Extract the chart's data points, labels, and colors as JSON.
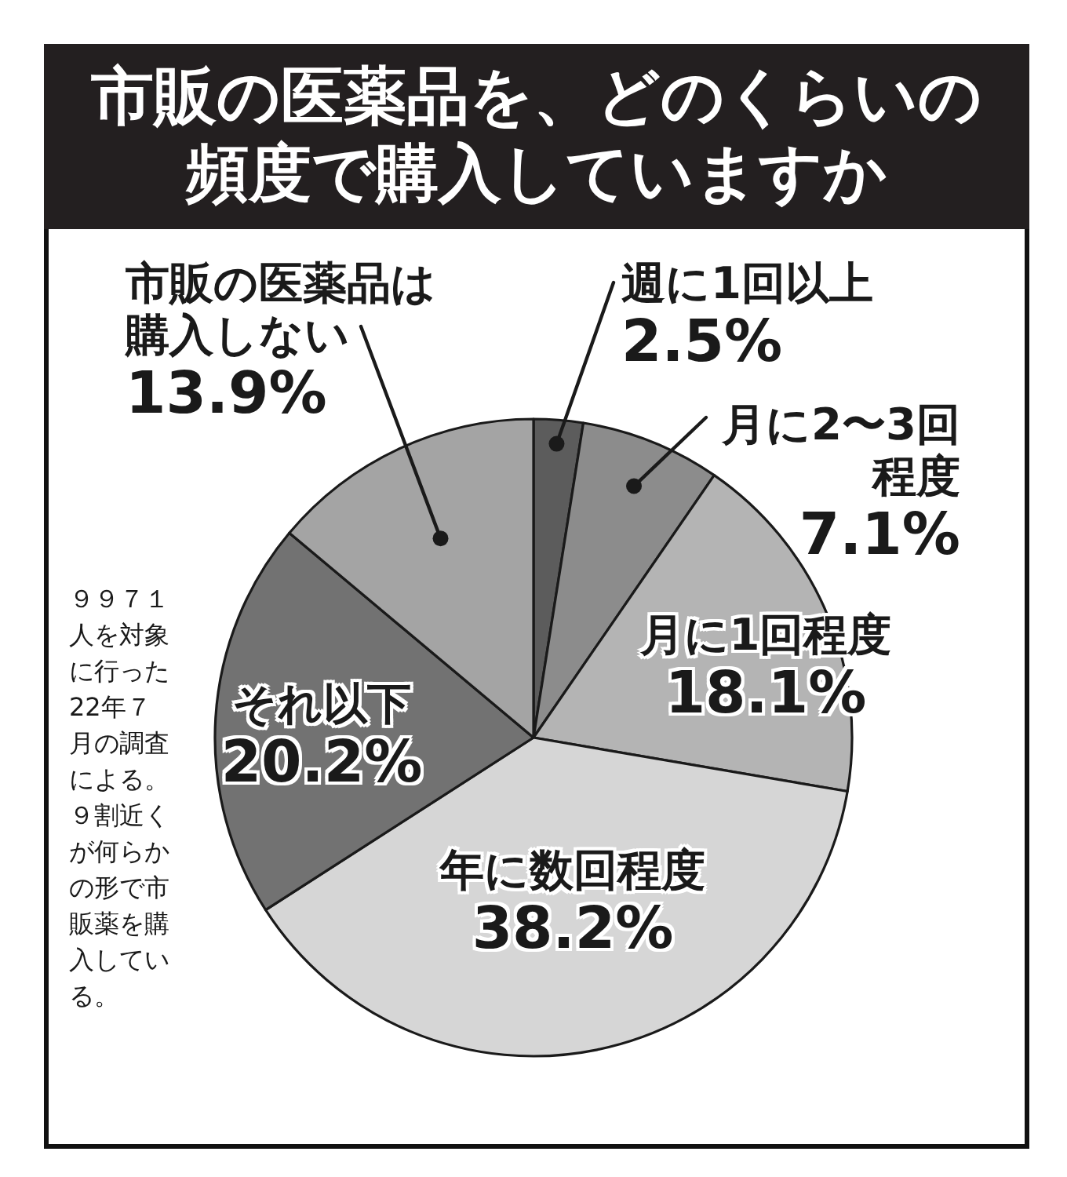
{
  "chart_data": {
    "type": "pie",
    "title": "市販の医薬品を、どのくらいの頻度で購入していますか",
    "categories": [
      "週に1回以上",
      "月に2〜3回程度",
      "月に1回程度",
      "年に数回程度",
      "それ以下",
      "市販の医薬品は購入しない"
    ],
    "values": [
      2.5,
      7.1,
      18.1,
      38.2,
      20.2,
      13.9
    ],
    "value_labels": [
      "2.5%",
      "7.1%",
      "18.1%",
      "38.2%",
      "20.2%",
      "13.9%"
    ],
    "colors": [
      "#5c5c5c",
      "#8c8c8c",
      "#b4b4b4",
      "#d6d6d6",
      "#727272",
      "#a4a4a4"
    ],
    "annotations": [
      "９９７１人を対象に行った22年７月の調査による。９割近くが何らかの形で市販薬を購入している。"
    ]
  }
}
